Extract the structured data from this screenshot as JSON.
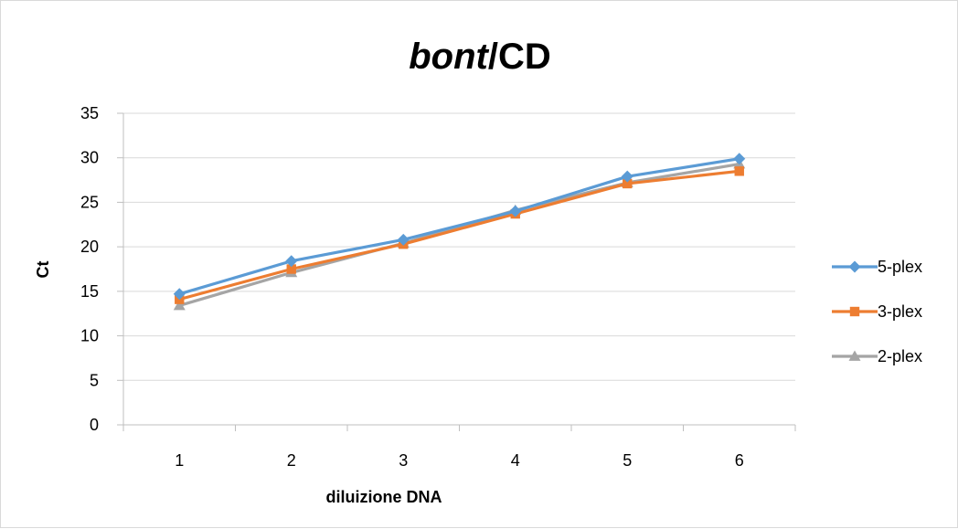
{
  "chart_data": {
    "type": "line",
    "title_italic": "bont",
    "title_rest": "/CD",
    "xlabel": "diluizione DNA",
    "ylabel": "Ct",
    "categories": [
      "1",
      "2",
      "3",
      "4",
      "5",
      "6"
    ],
    "ylim": [
      0,
      35
    ],
    "yticks": [
      0,
      5,
      10,
      15,
      20,
      25,
      30,
      35
    ],
    "grid": true,
    "legend_position": "right",
    "series": [
      {
        "name": "5-plex",
        "color": "#5b9bd5",
        "marker": "diamond",
        "values": [
          14.7,
          18.4,
          20.8,
          24.0,
          27.9,
          29.9
        ]
      },
      {
        "name": "3-plex",
        "color": "#ed7d31",
        "marker": "square",
        "values": [
          14.1,
          17.5,
          20.3,
          23.7,
          27.1,
          28.5
        ]
      },
      {
        "name": "2-plex",
        "color": "#a5a5a5",
        "marker": "triangle",
        "values": [
          13.4,
          17.1,
          20.4,
          24.1,
          27.2,
          29.3
        ]
      }
    ]
  }
}
